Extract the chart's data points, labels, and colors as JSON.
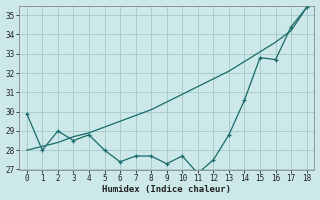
{
  "x": [
    0,
    1,
    2,
    3,
    4,
    5,
    6,
    7,
    8,
    9,
    10,
    11,
    12,
    13,
    14,
    15,
    16,
    17,
    18
  ],
  "y_curve": [
    29.9,
    28.0,
    29.0,
    28.5,
    28.8,
    28.0,
    27.4,
    27.7,
    27.7,
    27.3,
    27.7,
    26.8,
    27.5,
    28.8,
    30.6,
    32.8,
    32.7,
    34.4,
    35.4
  ],
  "y_diag": [
    28.0,
    28.2,
    28.4,
    28.7,
    28.9,
    29.2,
    29.5,
    29.8,
    30.1,
    30.5,
    30.9,
    31.3,
    31.7,
    32.1,
    32.6,
    33.1,
    33.6,
    34.2,
    35.4
  ],
  "line_color": "#1a6b6b",
  "bg_color": "#cce8e8",
  "grid_color": "#aacccc",
  "xlabel": "Humidex (Indice chaleur)",
  "ylim": [
    27.0,
    35.5
  ],
  "xlim": [
    -0.5,
    18.5
  ],
  "yticks": [
    27,
    28,
    29,
    30,
    31,
    32,
    33,
    34,
    35
  ],
  "xticks": [
    0,
    1,
    2,
    3,
    4,
    5,
    6,
    7,
    8,
    9,
    10,
    11,
    12,
    13,
    14,
    15,
    16,
    17,
    18
  ],
  "tick_fontsize": 5.5,
  "xlabel_fontsize": 6.5
}
